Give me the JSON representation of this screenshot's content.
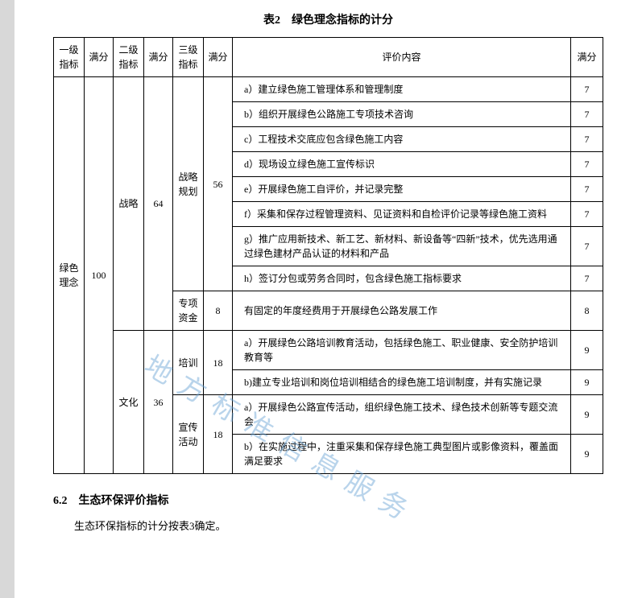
{
  "table": {
    "title": "表2　绿色理念指标的计分",
    "headers": {
      "lvl1": "一级\n指标",
      "full1": "满分",
      "lvl2": "二级\n指标",
      "full2": "满分",
      "lvl3": "三级\n指标",
      "full3": "满分",
      "eval": "评价内容",
      "full4": "满分"
    },
    "lvl1": {
      "name": "绿色\n理念",
      "full": "100"
    },
    "lvl2": [
      {
        "name": "战略",
        "full": "64"
      },
      {
        "name": "文化",
        "full": "36"
      }
    ],
    "lvl3": [
      {
        "name": "战略\n规划",
        "full": "56"
      },
      {
        "name": "专项\n资金",
        "full": "8"
      },
      {
        "name": "培训",
        "full": "18"
      },
      {
        "name": "宣传\n活动",
        "full": "18"
      }
    ],
    "rows": [
      {
        "eval": "a）建立绿色施工管理体系和管理制度",
        "full": "7"
      },
      {
        "eval": "b）组织开展绿色公路施工专项技术咨询",
        "full": "7"
      },
      {
        "eval": "c）工程技术交底应包含绿色施工内容",
        "full": "7"
      },
      {
        "eval": "d）现场设立绿色施工宣传标识",
        "full": "7"
      },
      {
        "eval": "e）开展绿色施工自评价，并记录完整",
        "full": "7"
      },
      {
        "eval": "f）采集和保存过程管理资料、见证资料和自检评价记录等绿色施工资料",
        "full": "7"
      },
      {
        "eval": "g）推广应用新技术、新工艺、新材料、新设备等“四新”技术，优先选用通过绿色建材产品认证的材料和产品",
        "full": "7"
      },
      {
        "eval": "h）签订分包或劳务合同时，包含绿色施工指标要求",
        "full": "7"
      },
      {
        "eval": "有固定的年度经费用于开展绿色公路发展工作",
        "full": "8"
      },
      {
        "eval": "a）开展绿色公路培训教育活动，包括绿色施工、职业健康、安全防护培训教育等",
        "full": "9"
      },
      {
        "eval": "b)建立专业培训和岗位培训相结合的绿色施工培训制度，并有实施记录",
        "full": "9"
      },
      {
        "eval": "a）开展绿色公路宣传活动，组织绿色施工技术、绿色技术创新等专题交流会",
        "full": "9"
      },
      {
        "eval": "b）在实施过程中，注重采集和保存绿色施工典型图片或影像资料，覆盖面满足要求",
        "full": "9"
      }
    ]
  },
  "section": {
    "heading": "6.2　生态环保评价指标",
    "body": "生态环保指标的计分按表3确定。"
  },
  "watermark": "地方标准信息服务"
}
